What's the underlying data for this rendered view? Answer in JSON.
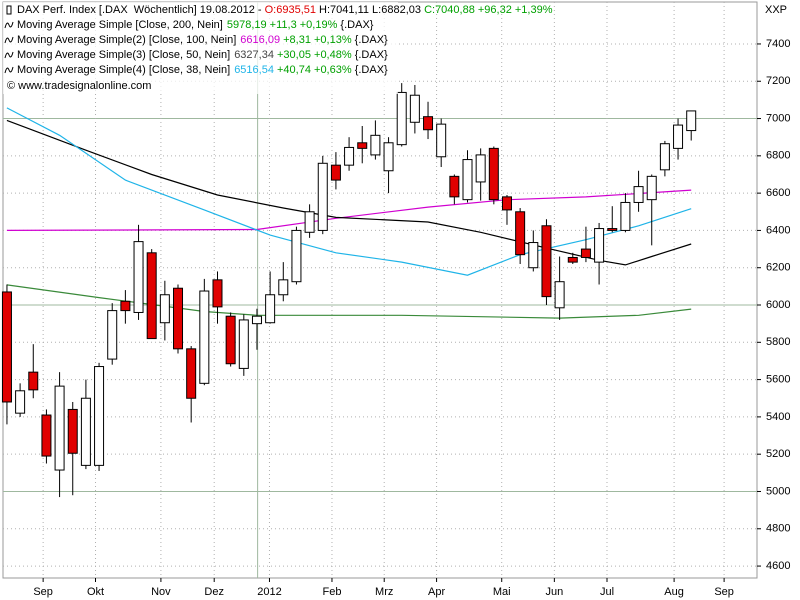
{
  "chart_data": {
    "type": "candlestick",
    "header": [
      {
        "text": "DAX Perf. Index [.DAX  Wöchentlich] 19.08.2012 - ",
        "color": "#000000"
      },
      {
        "text": "O:6935,51",
        "color": "#e00000"
      },
      {
        "text": " H:7041,11 L:6882,03 ",
        "color": "#000000"
      },
      {
        "text": "C:7040,88 +96,32 +1,39%",
        "color": "#00a000"
      }
    ],
    "watermark": "© www.tradesignalonline.com",
    "y_axis_label": "XXP",
    "up_color": "#ffffff",
    "down_color": "#e00000",
    "ohlc": {
      "open": [
        6070,
        5420,
        5640,
        5410,
        5115,
        5440,
        5140,
        5140,
        5710,
        6020,
        5960,
        6280,
        5905,
        6090,
        5765,
        5580,
        6135,
        5940,
        5660,
        5900,
        5905,
        6055,
        6125,
        6390,
        6400,
        6750,
        6750,
        6870,
        6805,
        6720,
        6860,
        6980,
        7010,
        6795,
        6690,
        6565,
        6660,
        6840,
        6580,
        6500,
        6200,
        6425,
        5985,
        6255,
        6300,
        6230,
        6410,
        6400,
        6550,
        6565,
        6725,
        6840,
        6935.51
      ],
      "high": [
        6110,
        5580,
        5790,
        5440,
        5640,
        5480,
        5600,
        5690,
        6010,
        6080,
        6430,
        6300,
        6130,
        6110,
        5780,
        6140,
        6180,
        5960,
        5950,
        5980,
        6180,
        6230,
        6420,
        6540,
        6800,
        6820,
        6900,
        6960,
        6990,
        6900,
        7190,
        7180,
        7090,
        7000,
        6700,
        6830,
        6840,
        6850,
        6590,
        6520,
        6400,
        6460,
        6260,
        6280,
        6420,
        6440,
        6530,
        6600,
        6720,
        6700,
        6880,
        7000,
        7041.11
      ],
      "low": [
        5360,
        5400,
        5500,
        5150,
        4970,
        4980,
        5120,
        5110,
        5680,
        5900,
        5920,
        5820,
        5810,
        5740,
        5370,
        5570,
        5900,
        5670,
        5620,
        5760,
        5900,
        6020,
        6110,
        6360,
        6380,
        6620,
        6720,
        6760,
        6780,
        6600,
        6850,
        6920,
        6890,
        6740,
        6540,
        6550,
        6560,
        6540,
        6430,
        6220,
        6180,
        6000,
        5920,
        6220,
        6230,
        6110,
        6390,
        6390,
        6500,
        6320,
        6690,
        6780,
        6882.03
      ],
      "close": [
        5480,
        5540,
        5545,
        5190,
        5565,
        5205,
        5500,
        5670,
        5970,
        5970,
        6340,
        5820,
        6055,
        5765,
        5500,
        6075,
        5990,
        5685,
        5920,
        5940,
        6055,
        6135,
        6400,
        6500,
        6760,
        6670,
        6845,
        6840,
        6910,
        6870,
        7140,
        7125,
        6940,
        6970,
        6580,
        6780,
        6805,
        6565,
        6510,
        6270,
        6335,
        6045,
        6125,
        6230,
        6255,
        6410,
        6400,
        6550,
        6635,
        6690,
        6865,
        6965,
        7040.88
      ]
    },
    "series": [
      {
        "name": "Moving Average Simple [Close, 200, Nein]",
        "color": "#3a8a3a",
        "x": [
          0,
          7,
          15,
          19,
          30,
          42,
          48,
          52
        ],
        "values": [
          6108,
          6040,
          5965,
          5945,
          5945,
          5930,
          5945,
          5978.19
        ],
        "readout": [
          {
            "text": "5978,19 +11,3 +0,19%",
            "color": "#00a000"
          },
          {
            "text": " {.DAX}",
            "color": "#000000"
          }
        ]
      },
      {
        "name": "Moving Average Simple(2) [Close, 100, Nein]",
        "color": "#d000d0",
        "x": [
          0,
          19,
          25,
          32,
          38,
          44,
          52
        ],
        "values": [
          6400,
          6405,
          6465,
          6525,
          6565,
          6580,
          6616.09
        ],
        "readout": [
          {
            "text": "6616,09",
            "color": "#d000d0"
          },
          {
            "text": " +8,31 +0,13%",
            "color": "#00a000"
          },
          {
            "text": " {.DAX}",
            "color": "#000000"
          }
        ]
      },
      {
        "name": "Moving Average Simple(3) [Close, 50, Nein]",
        "color": "#000000",
        "x": [
          0,
          6,
          11,
          16,
          21,
          25,
          32,
          36,
          41,
          45,
          47,
          49,
          52
        ],
        "values": [
          6990,
          6830,
          6700,
          6590,
          6520,
          6470,
          6445,
          6390,
          6305,
          6240,
          6215,
          6260,
          6327.34
        ],
        "readout": [
          {
            "text": "6327,34",
            "color": "#444444"
          },
          {
            "text": " +30,05 +0,48%",
            "color": "#00a000"
          },
          {
            "text": " {.DAX}",
            "color": "#000000"
          }
        ]
      },
      {
        "name": "Moving Average Simple(4) [Close, 38, Nein]",
        "color": "#1fb4e8",
        "x": [
          0,
          4,
          9,
          15,
          20,
          25,
          30,
          35,
          39,
          44,
          48,
          52
        ],
        "values": [
          7057,
          6910,
          6670,
          6510,
          6375,
          6280,
          6230,
          6160,
          6270,
          6350,
          6425,
          6516.54
        ],
        "readout": [
          {
            "text": "6516,54",
            "color": "#1fb4e8"
          },
          {
            "text": " +40,74 +0,63%",
            "color": "#00a000"
          },
          {
            "text": " {.DAX}",
            "color": "#000000"
          }
        ]
      }
    ],
    "xlim": [
      -0.3,
      57.0
    ],
    "xticks": [
      {
        "value": 2.75,
        "label": "Sep"
      },
      {
        "value": 6.73,
        "label": "Okt"
      },
      {
        "value": 11.7,
        "label": "Nov"
      },
      {
        "value": 15.75,
        "label": "Dez"
      },
      {
        "value": 19.95,
        "label": "2012"
      },
      {
        "value": 24.7,
        "label": "Feb"
      },
      {
        "value": 28.67,
        "label": "Mrz"
      },
      {
        "value": 32.65,
        "label": "Apr"
      },
      {
        "value": 37.6,
        "label": "Mai"
      },
      {
        "value": 41.6,
        "label": "Jun"
      },
      {
        "value": 45.6,
        "label": "Jul"
      },
      {
        "value": 50.7,
        "label": "Aug"
      },
      {
        "value": 54.5,
        "label": "Sep"
      }
    ],
    "x_separator": 19.05,
    "ylim": [
      4536,
      7625
    ],
    "yticks": [
      4600,
      4800,
      5000,
      5200,
      5400,
      5600,
      5800,
      6000,
      6200,
      6400,
      6600,
      6800,
      7000,
      7200,
      7400
    ],
    "major_yticks": [
      5000,
      6000,
      7000
    ],
    "grid": true
  }
}
